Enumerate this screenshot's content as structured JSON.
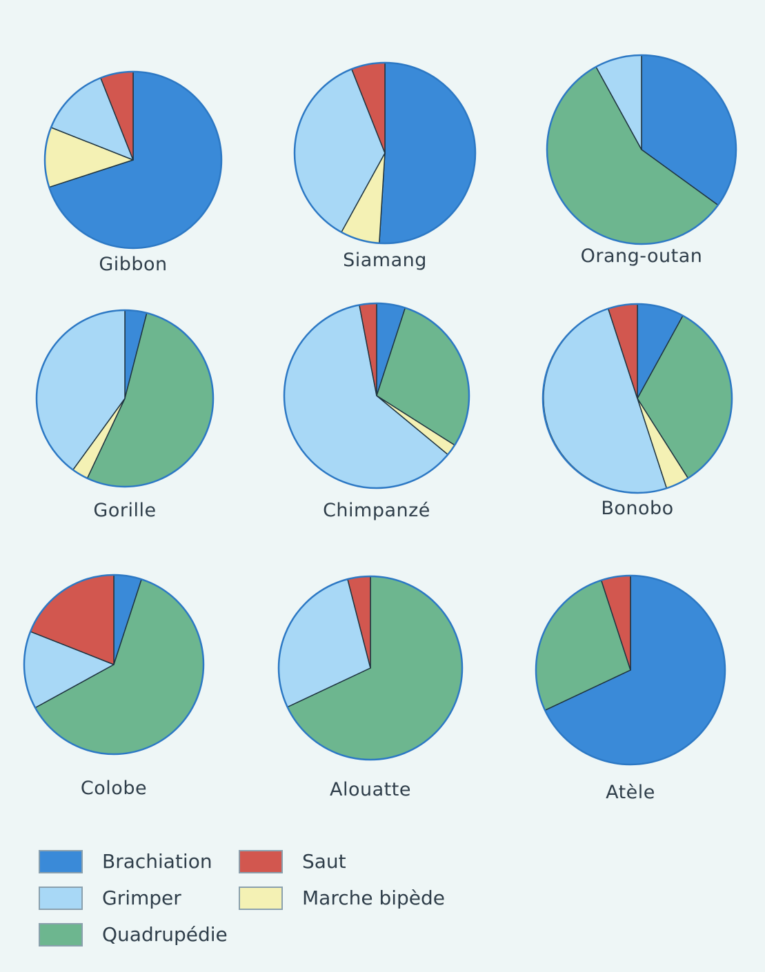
{
  "chart_data": {
    "type": "pie",
    "categories": [
      "Brachiation",
      "Grimper",
      "Quadrupédie",
      "Saut",
      "Marche bipède"
    ],
    "colors": {
      "Brachiation": "#3a8ad8",
      "Grimper": "#a8d8f6",
      "Quadrupédie": "#6db68f",
      "Saut": "#d2574f",
      "Marche bipède": "#f4f1b4"
    },
    "pies": [
      {
        "label": "Gibbon",
        "slices": [
          {
            "category": "Brachiation",
            "value": 70
          },
          {
            "category": "Marche bipède",
            "value": 11
          },
          {
            "category": "Grimper",
            "value": 13
          },
          {
            "category": "Saut",
            "value": 6
          }
        ]
      },
      {
        "label": "Siamang",
        "slices": [
          {
            "category": "Brachiation",
            "value": 51
          },
          {
            "category": "Marche bipède",
            "value": 7
          },
          {
            "category": "Grimper",
            "value": 36
          },
          {
            "category": "Saut",
            "value": 6
          }
        ]
      },
      {
        "label": "Orang-outan",
        "slices": [
          {
            "category": "Brachiation",
            "value": 35
          },
          {
            "category": "Quadrupédie",
            "value": 57
          },
          {
            "category": "Grimper",
            "value": 8
          }
        ]
      },
      {
        "label": "Gorille",
        "slices": [
          {
            "category": "Brachiation",
            "value": 4
          },
          {
            "category": "Quadrupédie",
            "value": 53
          },
          {
            "category": "Marche bipède",
            "value": 3
          },
          {
            "category": "Grimper",
            "value": 40
          }
        ]
      },
      {
        "label": "Chimpanzé",
        "slices": [
          {
            "category": "Brachiation",
            "value": 5
          },
          {
            "category": "Quadrupédie",
            "value": 29
          },
          {
            "category": "Marche bipède",
            "value": 2
          },
          {
            "category": "Grimper",
            "value": 61
          },
          {
            "category": "Saut",
            "value": 3
          }
        ]
      },
      {
        "label": "Bonobo",
        "slices": [
          {
            "category": "Brachiation",
            "value": 8
          },
          {
            "category": "Quadrupédie",
            "value": 33
          },
          {
            "category": "Marche bipède",
            "value": 4
          },
          {
            "category": "Grimper",
            "value": 50
          },
          {
            "category": "Saut",
            "value": 5
          }
        ]
      },
      {
        "label": "Colobe",
        "slices": [
          {
            "category": "Brachiation",
            "value": 5
          },
          {
            "category": "Quadrupédie",
            "value": 62
          },
          {
            "category": "Grimper",
            "value": 14
          },
          {
            "category": "Saut",
            "value": 19
          }
        ]
      },
      {
        "label": "Alouatte",
        "slices": [
          {
            "category": "Quadrupédie",
            "value": 68
          },
          {
            "category": "Grimper",
            "value": 28
          },
          {
            "category": "Saut",
            "value": 4
          }
        ]
      },
      {
        "label": "Atèle",
        "slices": [
          {
            "category": "Brachiation",
            "value": 68
          },
          {
            "category": "Quadrupédie",
            "value": 27
          },
          {
            "category": "Saut",
            "value": 5
          }
        ]
      }
    ],
    "legend": {
      "position": "bottom-left",
      "items": [
        {
          "label": "Brachiation",
          "color": "#3a8ad8"
        },
        {
          "label": "Grimper",
          "color": "#a8d8f6"
        },
        {
          "label": "Quadrupédie",
          "color": "#6db68f"
        },
        {
          "label": "Saut",
          "color": "#d2574f"
        },
        {
          "label": "Marche bipède",
          "color": "#f4f1b4"
        }
      ]
    }
  }
}
